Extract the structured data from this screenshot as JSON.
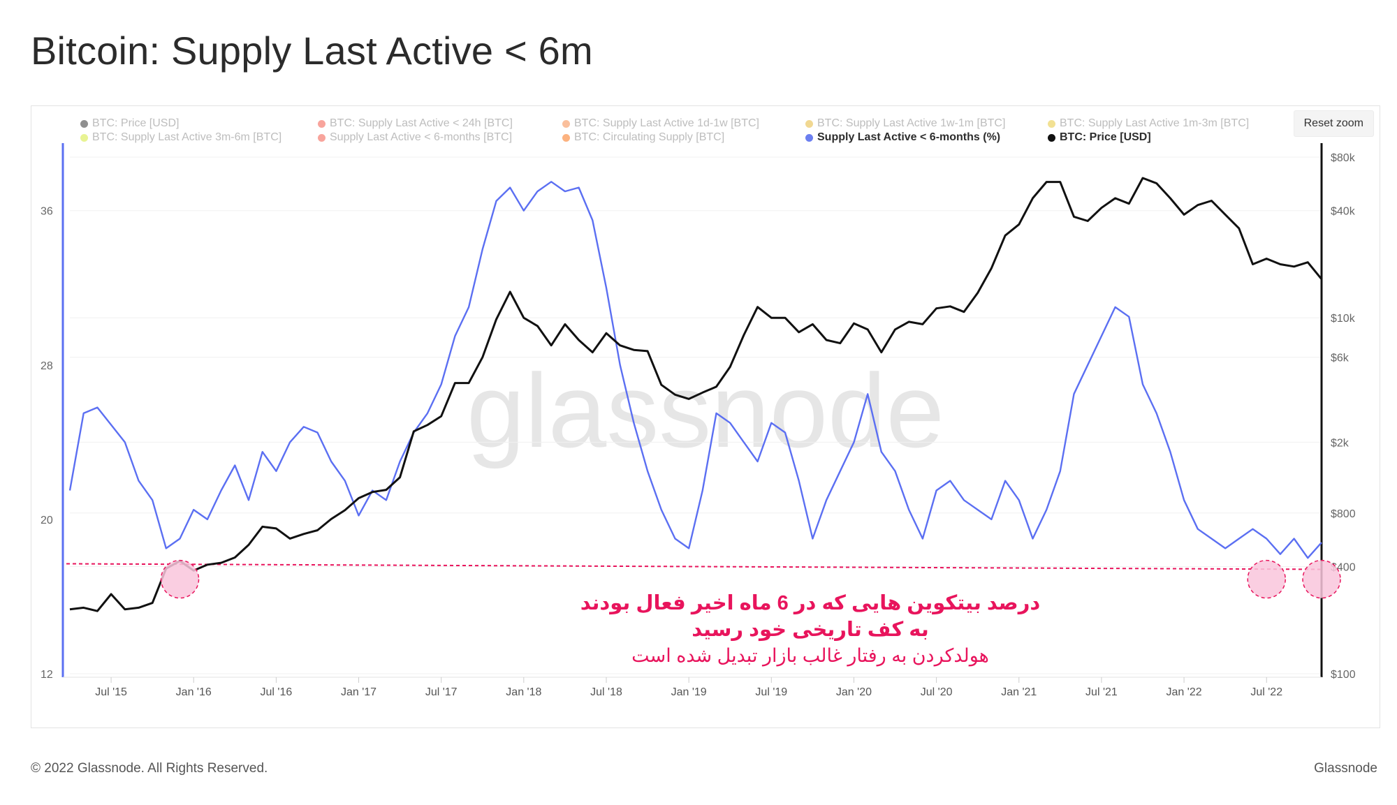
{
  "title": "Bitcoin: Supply Last Active < 6m",
  "reset_zoom": "Reset zoom",
  "watermark": "glassnode",
  "footer": {
    "copyright": "© 2022 Glassnode. All Rights Reserved.",
    "brand": "Glassnode"
  },
  "legend": [
    {
      "label": "BTC: Price [USD]",
      "color": "#333333",
      "active": false
    },
    {
      "label": "BTC: Supply Last Active < 24h [BTC]",
      "color": "#f2594b",
      "active": false
    },
    {
      "label": "BTC: Supply Last Active 1d-1w [BTC]",
      "color": "#f58a4b",
      "active": false
    },
    {
      "label": "BTC: Supply Last Active 1w-1m [BTC]",
      "color": "#e6b838",
      "active": false
    },
    {
      "label": "BTC: Supply Last Active 1m-3m [BTC]",
      "color": "#e8c93a",
      "active": false
    },
    {
      "label": "BTC: Supply Last Active 3m-6m [BTC]",
      "color": "#d6ea3a",
      "active": false
    },
    {
      "label": "Supply Last Active < 6-months [BTC]",
      "color": "#f2594b",
      "active": false
    },
    {
      "label": "BTC: Circulating Supply [BTC]",
      "color": "#f97316",
      "active": false
    },
    {
      "label": "Supply Last Active < 6-months (%)",
      "color": "#6b7ff0",
      "active": true
    },
    {
      "label": "BTC: Price [USD]",
      "color": "#111111",
      "active": true
    }
  ],
  "annotation": {
    "line1": "درصد بیتکوین هایی که در 6 ماه اخیر فعال بودند",
    "line2": "به کف تاریخی خود رسید",
    "line3": "هولدکردن به رفتار غالب بازار تبدیل شده است"
  },
  "colors": {
    "supply": "#5b6ff2",
    "price": "#111111",
    "annotation": "#e8145c",
    "marker_fill": "#f9c6dc"
  },
  "chart_data": {
    "type": "line",
    "x_start": "2015-04",
    "x_end": "2022-11",
    "x_ticks": [
      "Jul '15",
      "Jan '16",
      "Jul '16",
      "Jan '17",
      "Jul '17",
      "Jan '18",
      "Jul '18",
      "Jan '19",
      "Jul '19",
      "Jan '20",
      "Jul '20",
      "Jan '21",
      "Jul '21",
      "Jan '22",
      "Jul '22"
    ],
    "y_left": {
      "ticks": [
        12,
        20,
        28,
        36
      ],
      "range": [
        12,
        39.5
      ]
    },
    "y_right": {
      "scale": "log",
      "ticks": [
        "$100",
        "$400",
        "$800",
        "$2k",
        "$6k",
        "$10k",
        "$40k",
        "$80k"
      ],
      "tick_values": [
        100,
        400,
        800,
        2000,
        6000,
        10000,
        40000,
        80000
      ],
      "range": [
        100,
        80000
      ]
    },
    "threshold_pct": 17.7,
    "series": [
      {
        "name": "Supply Last Active < 6-months (%)",
        "axis": "left",
        "x": [
          "2015-04",
          "2015-05",
          "2015-06",
          "2015-08",
          "2015-09",
          "2015-10",
          "2015-11",
          "2015-12",
          "2016-01",
          "2016-02",
          "2016-03",
          "2016-04",
          "2016-05",
          "2016-06",
          "2016-07",
          "2016-08",
          "2016-09",
          "2016-10",
          "2016-11",
          "2016-12",
          "2017-01",
          "2017-02",
          "2017-03",
          "2017-04",
          "2017-05",
          "2017-06",
          "2017-07",
          "2017-08",
          "2017-09",
          "2017-10",
          "2017-11",
          "2017-12",
          "2018-01",
          "2018-02",
          "2018-03",
          "2018-04",
          "2018-05",
          "2018-06",
          "2018-07",
          "2018-08",
          "2018-09",
          "2018-10",
          "2018-11",
          "2018-12",
          "2019-01",
          "2019-02",
          "2019-03",
          "2019-04",
          "2019-05",
          "2019-06",
          "2019-07",
          "2019-08",
          "2019-09",
          "2019-10",
          "2019-11",
          "2019-12",
          "2020-01",
          "2020-02",
          "2020-03",
          "2020-04",
          "2020-05",
          "2020-06",
          "2020-07",
          "2020-08",
          "2020-09",
          "2020-10",
          "2020-11",
          "2020-12",
          "2021-01",
          "2021-02",
          "2021-03",
          "2021-04",
          "2021-05",
          "2021-06",
          "2021-07",
          "2021-08",
          "2021-09",
          "2021-10",
          "2021-11",
          "2021-12",
          "2022-01",
          "2022-02",
          "2022-03",
          "2022-04",
          "2022-05",
          "2022-06",
          "2022-07",
          "2022-08",
          "2022-09",
          "2022-10",
          "2022-11"
        ],
        "values": [
          21.5,
          25.5,
          25.8,
          24.0,
          22.0,
          21.0,
          18.5,
          19.0,
          20.5,
          20.0,
          21.5,
          22.8,
          21.0,
          23.5,
          22.5,
          24.0,
          24.8,
          24.5,
          23.0,
          22.0,
          20.2,
          21.5,
          21.0,
          23.0,
          24.5,
          25.5,
          27.0,
          29.5,
          31.0,
          34.0,
          36.5,
          37.2,
          36.0,
          37.0,
          37.5,
          37.0,
          37.2,
          35.5,
          32.0,
          28.0,
          25.0,
          22.5,
          20.5,
          19.0,
          18.5,
          21.5,
          25.5,
          25.0,
          24.0,
          23.0,
          25.0,
          24.5,
          22.0,
          19.0,
          21.0,
          22.5,
          24.0,
          26.5,
          23.5,
          22.5,
          20.5,
          19.0,
          21.5,
          22.0,
          21.0,
          20.5,
          20.0,
          22.0,
          21.0,
          19.0,
          20.5,
          22.5,
          26.5,
          28.0,
          29.5,
          31.0,
          30.5,
          27.0,
          25.5,
          23.5,
          21.0,
          19.5,
          19.0,
          18.5,
          19.0,
          19.5,
          19.0,
          18.2,
          19.0,
          18.0,
          18.8
        ]
      },
      {
        "name": "BTC: Price [USD]",
        "axis": "right",
        "x": [
          "2015-04",
          "2015-05",
          "2015-06",
          "2015-07",
          "2015-08",
          "2015-09",
          "2015-10",
          "2015-11",
          "2015-12",
          "2016-01",
          "2016-02",
          "2016-03",
          "2016-04",
          "2016-05",
          "2016-06",
          "2016-07",
          "2016-08",
          "2016-09",
          "2016-10",
          "2016-11",
          "2016-12",
          "2017-01",
          "2017-02",
          "2017-03",
          "2017-04",
          "2017-05",
          "2017-06",
          "2017-07",
          "2017-08",
          "2017-09",
          "2017-10",
          "2017-11",
          "2017-12",
          "2018-01",
          "2018-02",
          "2018-03",
          "2018-04",
          "2018-05",
          "2018-06",
          "2018-07",
          "2018-08",
          "2018-09",
          "2018-10",
          "2018-11",
          "2018-12",
          "2019-01",
          "2019-02",
          "2019-03",
          "2019-04",
          "2019-05",
          "2019-06",
          "2019-07",
          "2019-08",
          "2019-09",
          "2019-10",
          "2019-11",
          "2019-12",
          "2020-01",
          "2020-02",
          "2020-03",
          "2020-04",
          "2020-05",
          "2020-06",
          "2020-07",
          "2020-08",
          "2020-09",
          "2020-10",
          "2020-11",
          "2020-12",
          "2021-01",
          "2021-02",
          "2021-03",
          "2021-04",
          "2021-05",
          "2021-06",
          "2021-07",
          "2021-08",
          "2021-09",
          "2021-10",
          "2021-11",
          "2021-12",
          "2022-01",
          "2022-02",
          "2022-03",
          "2022-04",
          "2022-05",
          "2022-06",
          "2022-07",
          "2022-08",
          "2022-09",
          "2022-10",
          "2022-11"
        ],
        "values": [
          230,
          235,
          225,
          280,
          230,
          235,
          250,
          390,
          430,
          380,
          410,
          420,
          450,
          530,
          670,
          655,
          575,
          610,
          640,
          740,
          830,
          970,
          1050,
          1080,
          1270,
          2300,
          2500,
          2800,
          4300,
          4300,
          6000,
          9800,
          14000,
          10000,
          9000,
          7000,
          9200,
          7500,
          6400,
          8200,
          7000,
          6600,
          6500,
          4200,
          3700,
          3500,
          3800,
          4100,
          5300,
          8000,
          11500,
          10000,
          10000,
          8300,
          9200,
          7500,
          7200,
          9300,
          8600,
          6400,
          8600,
          9500,
          9200,
          11300,
          11600,
          10800,
          13800,
          19000,
          29000,
          33500,
          47000,
          58000,
          58000,
          37000,
          35000,
          41500,
          47000,
          43800,
          61000,
          57000,
          47000,
          38000,
          43000,
          45500,
          38000,
          31800,
          20000,
          21500,
          20000,
          19400,
          20500,
          16500
        ]
      }
    ]
  }
}
